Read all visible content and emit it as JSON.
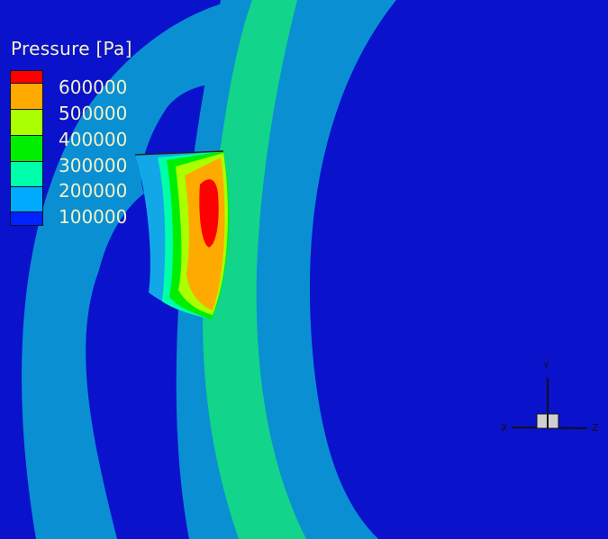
{
  "legend": {
    "title": "Pressure [Pa]",
    "levels": [
      {
        "label": "600000",
        "color": "#ff0000"
      },
      {
        "label": "500000",
        "color": "#ffaa00"
      },
      {
        "label": "400000",
        "color": "#aaff00"
      },
      {
        "label": "300000",
        "color": "#00ee00"
      },
      {
        "label": "200000",
        "color": "#00ffaa"
      },
      {
        "label": "100000",
        "color": "#00aaff"
      },
      {
        "label": "",
        "color": "#0022ff"
      }
    ]
  },
  "axes": {
    "y": "Y",
    "x": "X",
    "z": "Z"
  },
  "colors": {
    "background": "#0a12cc",
    "band_outer": "#0a8fd2",
    "band_inner": "#12d48a"
  }
}
